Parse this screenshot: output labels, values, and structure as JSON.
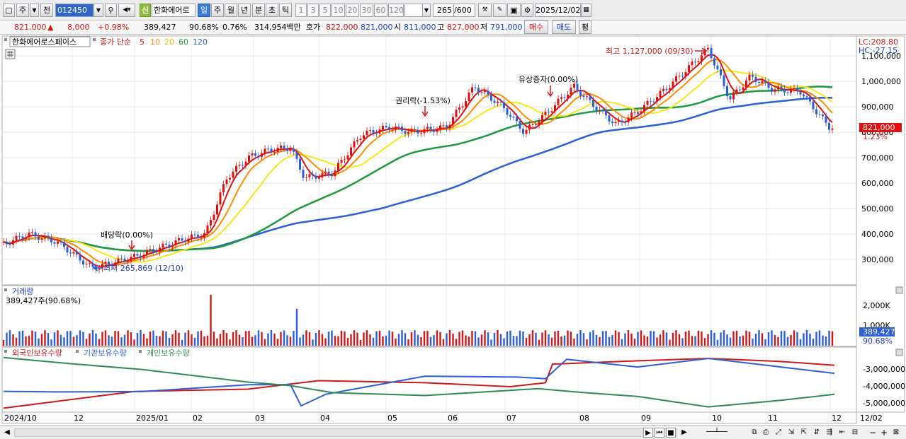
{
  "toolbar": {
    "market": "주",
    "period_prefix": "전",
    "code": "012450",
    "badge": "신",
    "stock_name": "한화에어로",
    "period_tabs": [
      "일",
      "주",
      "월",
      "년",
      "분",
      "초",
      "틱"
    ],
    "active_period": "일",
    "intervals": [
      "1",
      "3",
      "5",
      "10",
      "20",
      "30",
      "60",
      "120"
    ],
    "count": "265",
    "count_total": "/600",
    "date": "2025/12/02"
  },
  "quote": {
    "price": "821,000",
    "change": "8,000",
    "change_pct": "+0.98%",
    "volume": "389,427",
    "vol_ratio": "90.68%",
    "turnover_pct": "0.76%",
    "amount": "314,954백만",
    "label_hoga": "호가",
    "ask": "822,000",
    "bid": "821,000",
    "label_open": "시",
    "open": "811,000",
    "label_high": "고",
    "high": "827,000",
    "label_low": "저",
    "low": "791,000",
    "buy": "매수",
    "sell": "매도",
    "eval": "평"
  },
  "main_chart": {
    "stock_label": "한화에어로스페이스",
    "ma_label": "종가 단순",
    "ma_periods": [
      "5",
      "10",
      "20",
      "60",
      "120"
    ],
    "ma_colors": [
      "#e01010",
      "#ff8c00",
      "#f7e81a",
      "#1e9a3a",
      "#2b5fd9"
    ],
    "lc": "LC:208.80",
    "hc": "HC:-27.15",
    "current_price": "821,000",
    "current_pct": "1.23%",
    "y_ticks": [
      "1,100,000",
      "1,000,000",
      "900,000",
      "800,000",
      "700,000",
      "600,000",
      "500,000",
      "400,000",
      "300,000"
    ],
    "annotations": {
      "dividend": "배당락(0.00%)",
      "low": "최저 265,869 (12/10)",
      "rights": "권리락(-1.53%)",
      "rights_issue": "유상증자(0.00%)",
      "high": "최고 1,127,000 (09/30)"
    }
  },
  "volume_chart": {
    "title": "거래량",
    "value": "389,427주(90.68%)",
    "y_ticks": [
      "2,000K",
      "1,000K"
    ],
    "current": "389,427",
    "current_pct": "90.68%"
  },
  "holdings_chart": {
    "legend": [
      "외국인보유수량",
      "기관보유수량",
      "개인보유수량"
    ],
    "legend_colors": [
      "#d01818",
      "#2b5fd9",
      "#2e8b57"
    ],
    "y_ticks": [
      "-3,000,000",
      "-4,000,000",
      "-5,000,000"
    ]
  },
  "x_axis": {
    "labels": [
      "2024/10",
      "12",
      "2025/01",
      "02",
      "03",
      "04",
      "05",
      "06",
      "07",
      "08",
      "09",
      "10",
      "11",
      "12",
      "12/02"
    ]
  }
}
